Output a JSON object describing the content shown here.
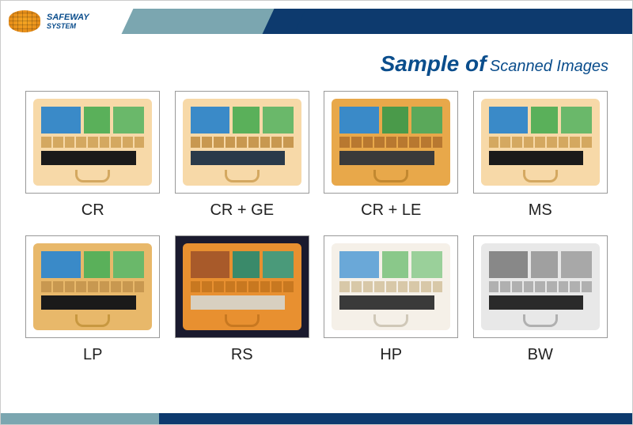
{
  "brand": {
    "line1": "SAFEWAY",
    "line2": "SYSTEM"
  },
  "title": {
    "main": "Sample of",
    "sub": "Scanned Images"
  },
  "colors": {
    "navy": "#0d3a6e",
    "teal": "#7ba6b0",
    "brand_text": "#0a4d8c"
  },
  "samples": [
    {
      "label": "CR",
      "variant": "v-cr",
      "thumb_bg": "#ffffff",
      "blocks": [
        {
          "w": "38%",
          "bg": "#3a8ac8"
        },
        {
          "w": "26%",
          "bg": "#5ab05a"
        },
        {
          "w": "30%",
          "bg": "#6ab86a"
        }
      ],
      "strips_bg": "#d4a860",
      "dark_bg": "#1a1a1a"
    },
    {
      "label": "CR + GE",
      "variant": "v-ge",
      "thumb_bg": "#ffffff",
      "blocks": [
        {
          "w": "38%",
          "bg": "#3a8ac8"
        },
        {
          "w": "26%",
          "bg": "#5ab05a"
        },
        {
          "w": "30%",
          "bg": "#6ab86a"
        }
      ],
      "strips_bg": "#c89850",
      "dark_bg": "#2a3a4a"
    },
    {
      "label": "CR + LE",
      "variant": "v-le",
      "thumb_bg": "#ffffff",
      "blocks": [
        {
          "w": "38%",
          "bg": "#3a8ac8"
        },
        {
          "w": "26%",
          "bg": "#4a9a4a"
        },
        {
          "w": "30%",
          "bg": "#5aa85a"
        }
      ],
      "strips_bg": "#b87830",
      "dark_bg": "#3a3a3a"
    },
    {
      "label": "MS",
      "variant": "v-ms",
      "thumb_bg": "#ffffff",
      "blocks": [
        {
          "w": "38%",
          "bg": "#3a8ac8"
        },
        {
          "w": "26%",
          "bg": "#5ab05a"
        },
        {
          "w": "30%",
          "bg": "#6ab86a"
        }
      ],
      "strips_bg": "#d4a860",
      "dark_bg": "#1a1a1a"
    },
    {
      "label": "LP",
      "variant": "v-lp",
      "thumb_bg": "#ffffff",
      "blocks": [
        {
          "w": "38%",
          "bg": "#3a8ac8"
        },
        {
          "w": "26%",
          "bg": "#5ab05a"
        },
        {
          "w": "30%",
          "bg": "#6ab86a"
        }
      ],
      "strips_bg": "#c89850",
      "dark_bg": "#1a1a1a"
    },
    {
      "label": "RS",
      "variant": "v-rs",
      "thumb_bg": "#1a1a2e",
      "blocks": [
        {
          "w": "38%",
          "bg": "#a85a2a"
        },
        {
          "w": "26%",
          "bg": "#3a8a6a"
        },
        {
          "w": "30%",
          "bg": "#4a9a7a"
        }
      ],
      "strips_bg": "#c87820",
      "dark_bg": "#d8d0c0"
    },
    {
      "label": "HP",
      "variant": "v-hp",
      "thumb_bg": "#ffffff",
      "blocks": [
        {
          "w": "38%",
          "bg": "#6aa8d8"
        },
        {
          "w": "26%",
          "bg": "#8ac88a"
        },
        {
          "w": "30%",
          "bg": "#9ad09a"
        }
      ],
      "strips_bg": "#d8c8a8",
      "dark_bg": "#3a3a3a"
    },
    {
      "label": "BW",
      "variant": "v-bw",
      "thumb_bg": "#ffffff",
      "blocks": [
        {
          "w": "38%",
          "bg": "#888888"
        },
        {
          "w": "26%",
          "bg": "#a0a0a0"
        },
        {
          "w": "30%",
          "bg": "#a8a8a8"
        }
      ],
      "strips_bg": "#b0b0b0",
      "dark_bg": "#2a2a2a"
    }
  ]
}
